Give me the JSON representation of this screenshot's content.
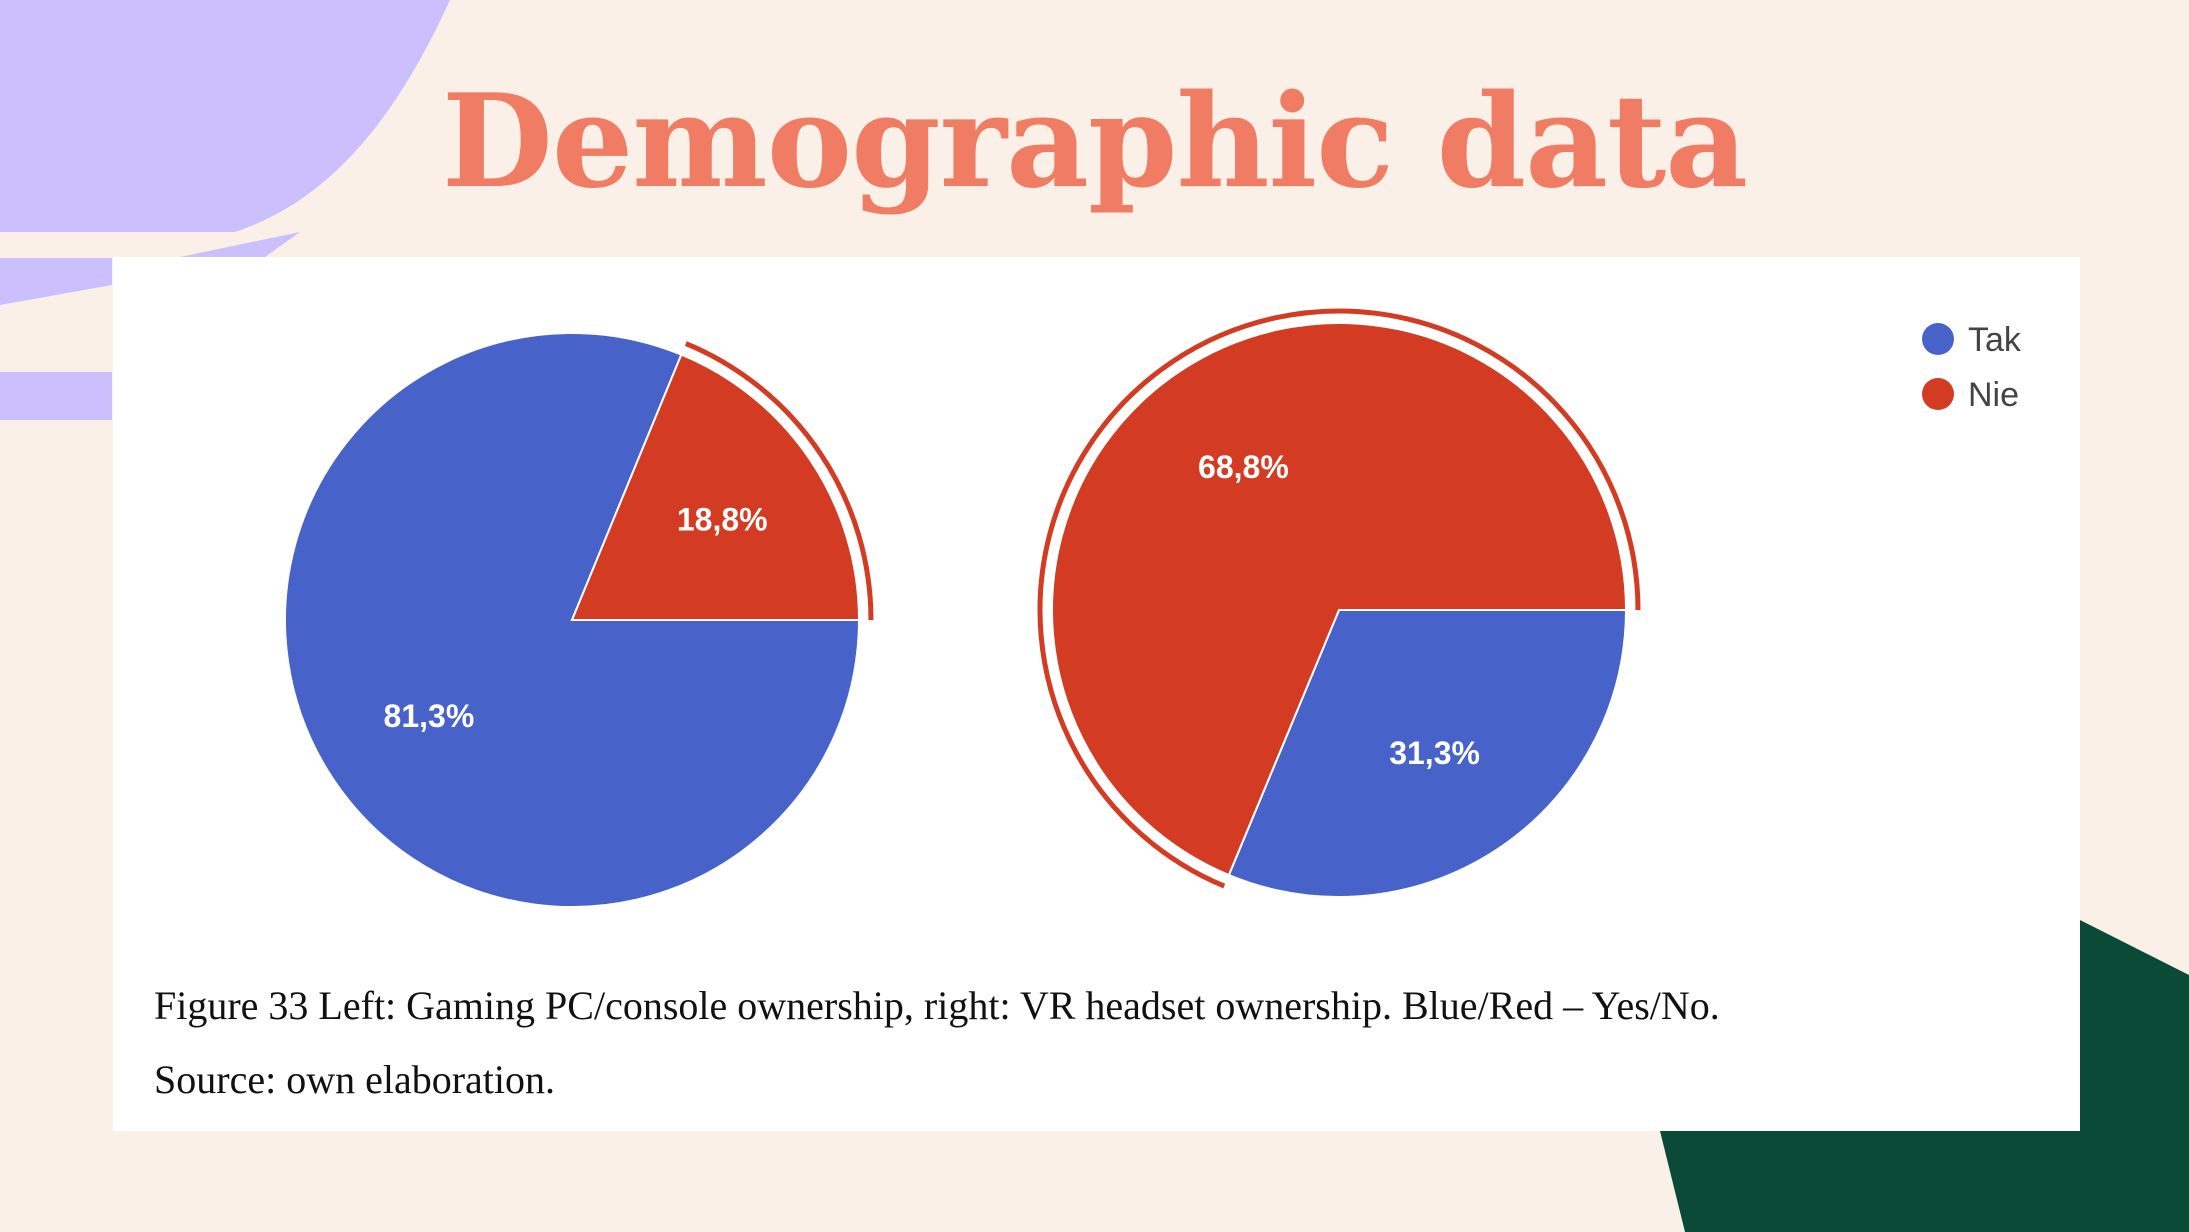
{
  "slide": {
    "title": "Demographic data",
    "caption_line1": "Figure 33 Left: Gaming PC/console ownership, right: VR headset ownership. Blue/Red – Yes/No.",
    "caption_line2": "Source: own elaboration."
  },
  "colors": {
    "background": "#faf0e7",
    "title": "#f07c63",
    "lavender": "#cbc0fd",
    "dark_green": "#0b4a37",
    "tak_blue": "#4763c9",
    "nie_red": "#d33b22"
  },
  "chart_data": [
    {
      "type": "pie",
      "legend": {
        "placement": "top-right",
        "entries": [
          "Tak",
          "Nie"
        ]
      },
      "slices": [
        {
          "name": "Tak",
          "value": 81.3,
          "label": "81,3%",
          "color": "#4763c9"
        },
        {
          "name": "Nie",
          "value": 18.8,
          "label": "18,8%",
          "color": "#d33b22",
          "highlighted": true
        }
      ]
    },
    {
      "type": "pie",
      "legend": {
        "placement": "top-right",
        "entries": [
          "Tak",
          "Nie"
        ]
      },
      "slices": [
        {
          "name": "Tak",
          "value": 31.3,
          "label": "31,3%",
          "color": "#4763c9"
        },
        {
          "name": "Nie",
          "value": 68.8,
          "label": "68,8%",
          "color": "#d33b22",
          "highlighted": true
        }
      ]
    }
  ]
}
